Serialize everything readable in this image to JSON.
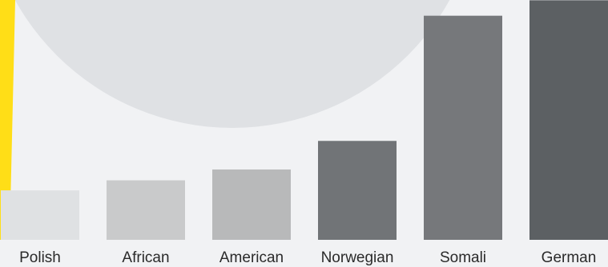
{
  "chart_data": {
    "type": "bar",
    "categories": [
      "Polish",
      "African",
      "American",
      "Norwegian",
      "Somali",
      "German"
    ],
    "values": [
      64,
      77,
      91,
      128,
      290,
      310
    ],
    "ylim": [
      0,
      300
    ],
    "title": "",
    "xlabel": "",
    "ylabel": "",
    "grid": false,
    "legend": "none",
    "colors": {
      "background": "#f1f2f4",
      "decor_circle": "#dfe1e4",
      "accent_stripe": "#ffde17",
      "bars": [
        "#dfe1e3",
        "#c9cacb",
        "#b8b9ba",
        "#717477",
        "#76787b",
        "#5c6063"
      ]
    }
  }
}
